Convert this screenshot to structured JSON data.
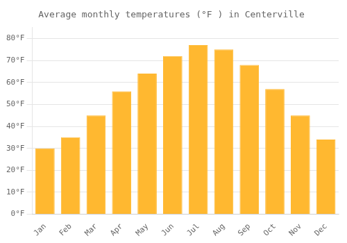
{
  "chart_data": {
    "type": "bar",
    "title": "Average monthly temperatures (°F ) in Centerville",
    "categories": [
      "Jan",
      "Feb",
      "Mar",
      "Apr",
      "May",
      "Jun",
      "Jul",
      "Aug",
      "Sep",
      "Oct",
      "Nov",
      "Dec"
    ],
    "values": [
      30,
      35,
      45,
      56,
      64,
      72,
      77,
      75,
      68,
      57,
      45,
      34
    ],
    "color": "#FFB830",
    "ylim": [
      0,
      85
    ],
    "yticks": [
      {
        "value": 0,
        "label": "0°F"
      },
      {
        "value": 10,
        "label": "10°F"
      },
      {
        "value": 20,
        "label": "20°F"
      },
      {
        "value": 30,
        "label": "30°F"
      },
      {
        "value": 40,
        "label": "40°F"
      },
      {
        "value": 50,
        "label": "50°F"
      },
      {
        "value": 60,
        "label": "60°F"
      },
      {
        "value": 70,
        "label": "70°F"
      },
      {
        "value": 80,
        "label": "80°F"
      }
    ],
    "grid": true
  }
}
